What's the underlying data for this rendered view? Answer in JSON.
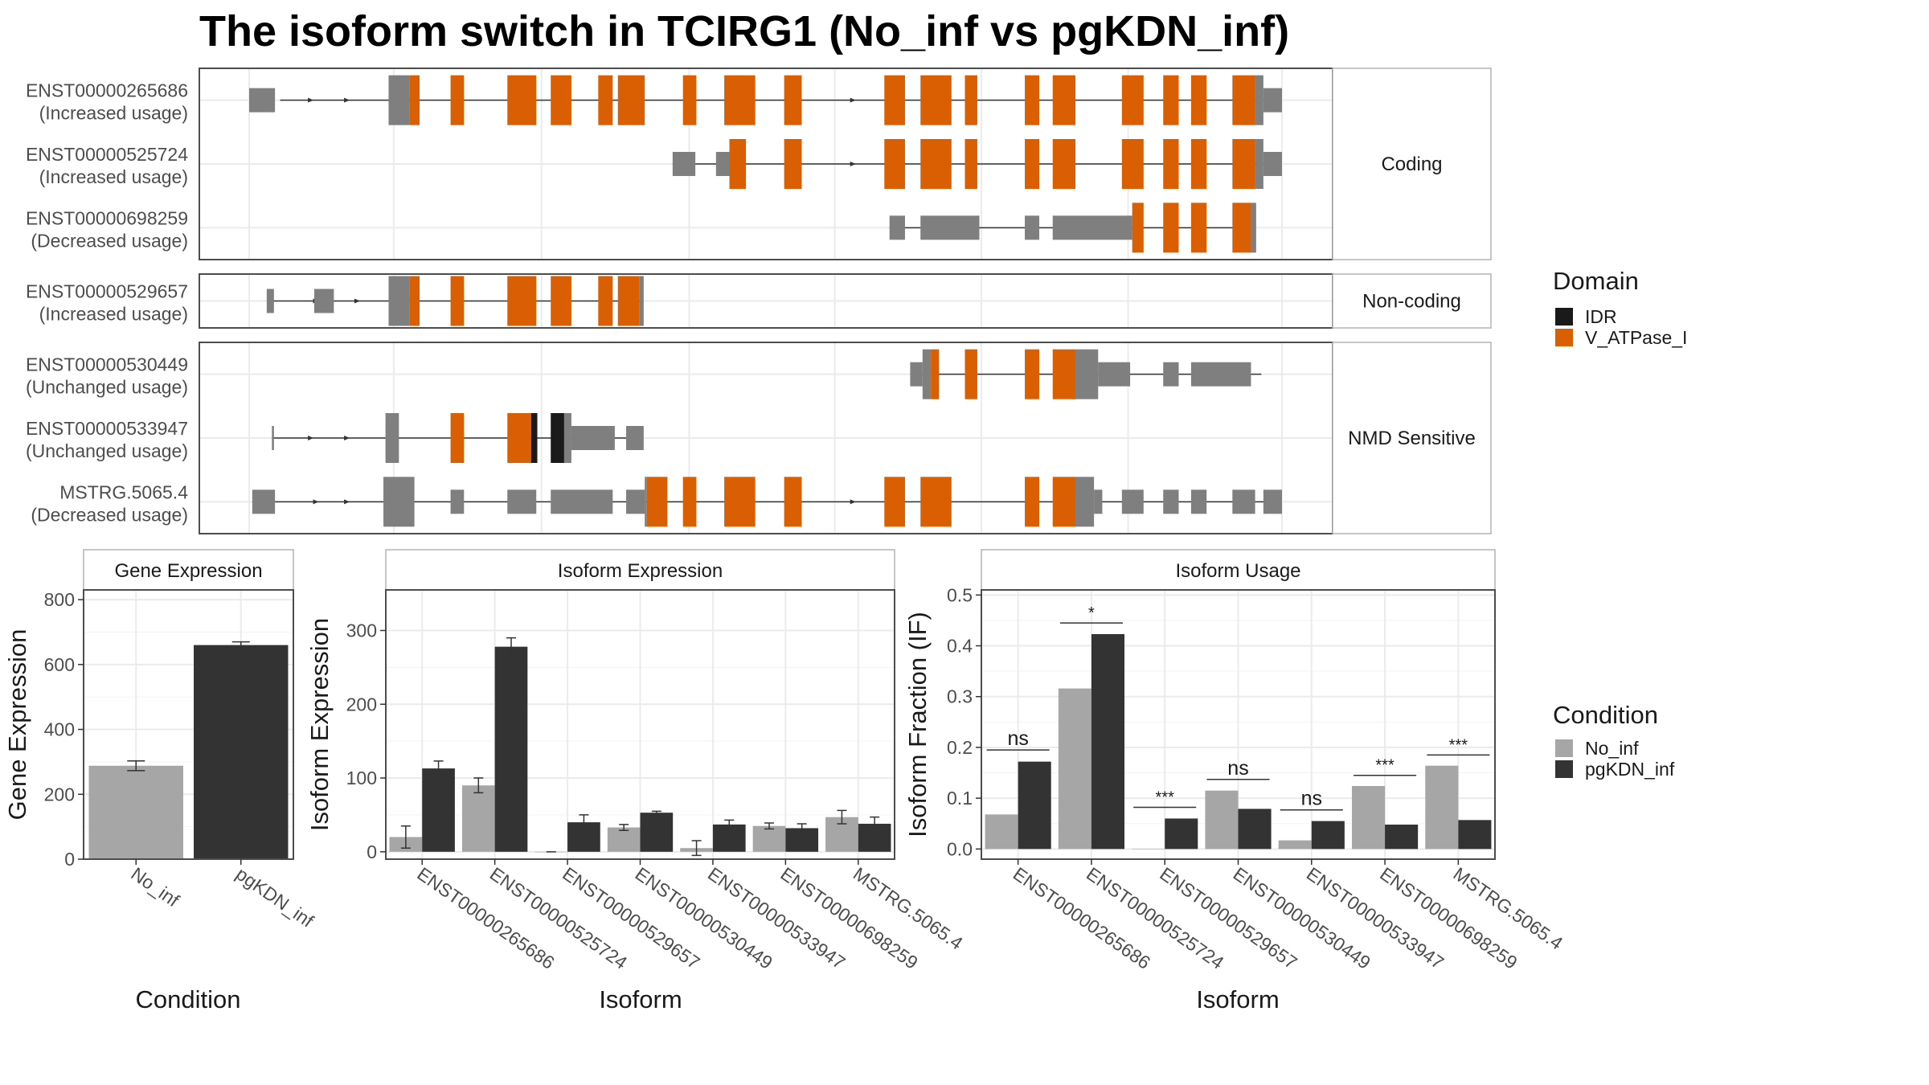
{
  "title": "The isoform switch in TCIRG1 (No_inf vs pgKDN_inf)",
  "colors": {
    "exon_gray": "#7f7f7f",
    "domain_idr": "#1a1a1a",
    "domain_vatpase": "#d95f02",
    "no_inf": "#a6a6a6",
    "pgkdn_inf": "#333333",
    "panel_border": "#4d4d4d",
    "strip_bg": "#ffffff",
    "grid": "#ebebeb"
  },
  "structure": {
    "genomic_range": [
      0,
      1000
    ],
    "panels": [
      {
        "label": "Coding",
        "transcripts": [
          {
            "id": "ENST00000265686",
            "usage": "(Increased usage)",
            "intron": [
              30,
              1000
            ],
            "arrows": [
              60,
              95,
              585
            ],
            "exons": [
              [
                0,
                25,
                "thin"
              ],
              [
                135,
                155,
                "thick"
              ],
              [
                155,
                165,
                "vatpase"
              ],
              [
                195,
                208,
                "vatpase"
              ],
              [
                250,
                278,
                "vatpase"
              ],
              [
                292,
                312,
                "vatpase"
              ],
              [
                338,
                352,
                "vatpase"
              ],
              [
                357,
                383,
                "vatpase"
              ],
              [
                420,
                433,
                "vatpase"
              ],
              [
                460,
                490,
                "vatpase"
              ],
              [
                518,
                535,
                "vatpase"
              ],
              [
                615,
                635,
                "vatpase"
              ],
              [
                650,
                680,
                "vatpase"
              ],
              [
                693,
                705,
                "vatpase"
              ],
              [
                751,
                765,
                "vatpase"
              ],
              [
                778,
                800,
                "vatpase"
              ],
              [
                845,
                866,
                "vatpase"
              ],
              [
                885,
                900,
                "vatpase"
              ],
              [
                912,
                927,
                "vatpase"
              ],
              [
                952,
                974,
                "vatpase"
              ],
              [
                974,
                982,
                "thick"
              ],
              [
                982,
                1000,
                "thin"
              ]
            ]
          },
          {
            "id": "ENST00000525724",
            "usage": "(Increased usage)",
            "intron": [
              410,
              1000
            ],
            "arrows": [
              585
            ],
            "exons": [
              [
                410,
                432,
                "thin"
              ],
              [
                452,
                465,
                "thin"
              ],
              [
                465,
                481,
                "vatpase"
              ],
              [
                518,
                535,
                "vatpase"
              ],
              [
                615,
                635,
                "vatpase"
              ],
              [
                650,
                680,
                "vatpase"
              ],
              [
                693,
                705,
                "vatpase"
              ],
              [
                751,
                765,
                "vatpase"
              ],
              [
                778,
                800,
                "vatpase"
              ],
              [
                845,
                866,
                "vatpase"
              ],
              [
                885,
                900,
                "vatpase"
              ],
              [
                912,
                927,
                "vatpase"
              ],
              [
                952,
                974,
                "vatpase"
              ],
              [
                974,
                982,
                "thick"
              ],
              [
                982,
                1000,
                "thin"
              ]
            ]
          },
          {
            "id": "ENST00000698259",
            "usage": "(Decreased usage)",
            "intron": [
              620,
              955
            ],
            "arrows": [],
            "exons": [
              [
                620,
                635,
                "thin"
              ],
              [
                650,
                707,
                "thin"
              ],
              [
                751,
                765,
                "thin"
              ],
              [
                778,
                855,
                "thin"
              ],
              [
                855,
                866,
                "vatpase"
              ],
              [
                885,
                900,
                "vatpase"
              ],
              [
                912,
                927,
                "vatpase"
              ],
              [
                952,
                970,
                "vatpase"
              ],
              [
                970,
                975,
                "thick"
              ]
            ]
          }
        ]
      },
      {
        "label": "Non-coding",
        "transcripts": [
          {
            "id": "ENST00000529657",
            "usage": "(Increased usage)",
            "intron": [
              17,
              380
            ],
            "arrows": [
              65,
              105
            ],
            "exons": [
              [
                17,
                24,
                "thin"
              ],
              [
                63,
                82,
                "thin"
              ],
              [
                135,
                155,
                "thick"
              ],
              [
                155,
                165,
                "vatpase"
              ],
              [
                195,
                208,
                "vatpase"
              ],
              [
                250,
                278,
                "vatpase"
              ],
              [
                292,
                312,
                "vatpase"
              ],
              [
                338,
                352,
                "vatpase"
              ],
              [
                357,
                378,
                "vatpase"
              ],
              [
                378,
                382,
                "thick"
              ]
            ]
          }
        ]
      },
      {
        "label": "NMD Sensitive",
        "transcripts": [
          {
            "id": "ENST00000530449",
            "usage": "(Unchanged usage)",
            "intron": [
              640,
              980
            ],
            "arrows": [],
            "exons": [
              [
                640,
                652,
                "thin"
              ],
              [
                652,
                660,
                "thick"
              ],
              [
                660,
                668,
                "vatpase"
              ],
              [
                693,
                705,
                "vatpase"
              ],
              [
                751,
                765,
                "vatpase"
              ],
              [
                778,
                800,
                "vatpase"
              ],
              [
                800,
                822,
                "thick"
              ],
              [
                822,
                853,
                "thin"
              ],
              [
                885,
                900,
                "thin"
              ],
              [
                912,
                970,
                "thin"
              ]
            ]
          },
          {
            "id": "ENST00000533947",
            "usage": "(Unchanged usage)",
            "intron": [
              22,
              380
            ],
            "arrows": [
              60,
              95
            ],
            "exons": [
              [
                22,
                24,
                "thin"
              ],
              [
                132,
                145,
                "thick"
              ],
              [
                195,
                208,
                "vatpase"
              ],
              [
                250,
                273,
                "vatpase"
              ],
              [
                273,
                279,
                "idr"
              ],
              [
                292,
                305,
                "idr"
              ],
              [
                305,
                312,
                "thick"
              ],
              [
                312,
                354,
                "thin"
              ],
              [
                365,
                382,
                "thin"
              ]
            ]
          },
          {
            "id": "MSTRG.5065.4",
            "usage": "(Decreased usage)",
            "intron": [
              3,
              1000
            ],
            "arrows": [
              65,
              95,
              585
            ],
            "exons": [
              [
                3,
                25,
                "thin"
              ],
              [
                130,
                160,
                "thick"
              ],
              [
                195,
                208,
                "thin"
              ],
              [
                250,
                278,
                "thin"
              ],
              [
                292,
                352,
                "thin"
              ],
              [
                365,
                383,
                "thin"
              ],
              [
                383,
                385,
                "thick"
              ],
              [
                385,
                405,
                "vatpase"
              ],
              [
                420,
                433,
                "vatpase"
              ],
              [
                460,
                490,
                "vatpase"
              ],
              [
                518,
                535,
                "vatpase"
              ],
              [
                615,
                635,
                "vatpase"
              ],
              [
                650,
                680,
                "vatpase"
              ],
              [
                751,
                765,
                "vatpase"
              ],
              [
                778,
                800,
                "vatpase"
              ],
              [
                800,
                818,
                "thick"
              ],
              [
                818,
                826,
                "thin"
              ],
              [
                845,
                866,
                "thin"
              ],
              [
                885,
                900,
                "thin"
              ],
              [
                912,
                927,
                "thin"
              ],
              [
                952,
                974,
                "thin"
              ],
              [
                982,
                1000,
                "thin"
              ]
            ]
          }
        ]
      }
    ]
  },
  "legends": {
    "domain": {
      "title": "Domain",
      "items": [
        {
          "label": "IDR",
          "color": "#1a1a1a"
        },
        {
          "label": "V_ATPase_I",
          "color": "#d95f02"
        }
      ]
    },
    "condition": {
      "title": "Condition",
      "items": [
        {
          "label": "No_inf",
          "color": "#a6a6a6"
        },
        {
          "label": "pgKDN_inf",
          "color": "#333333"
        }
      ]
    }
  },
  "chart_data": [
    {
      "type": "bar",
      "strip": "Gene Expression",
      "xlabel": "Condition",
      "ylabel": "Gene Expression",
      "ylim": [
        0,
        830
      ],
      "yticks": [
        0,
        200,
        400,
        600,
        800
      ],
      "categories": [
        "No_inf",
        "pgKDN_inf"
      ],
      "values": [
        288,
        660
      ],
      "errors": [
        15,
        10
      ],
      "colors": [
        "#a6a6a6",
        "#333333"
      ]
    },
    {
      "type": "bar",
      "strip": "Isoform Expression",
      "xlabel": "Isoform",
      "ylabel": "Isoform Expression",
      "ylim": [
        -10,
        355
      ],
      "yticks": [
        0,
        100,
        200,
        300
      ],
      "categories": [
        "ENST00000265686",
        "ENST00000525724",
        "ENST00000529657",
        "ENST00000530449",
        "ENST00000533947",
        "ENST00000698259",
        "MSTRG.5065.4"
      ],
      "series": [
        {
          "name": "No_inf",
          "values": [
            20,
            90,
            0,
            33,
            5,
            35,
            47
          ],
          "errors": [
            15,
            10,
            0,
            4,
            10,
            4,
            9
          ]
        },
        {
          "name": "pgKDN_inf",
          "values": [
            113,
            278,
            40,
            53,
            37,
            32,
            38
          ],
          "errors": [
            10,
            12,
            10,
            2,
            6,
            6,
            9
          ]
        }
      ]
    },
    {
      "type": "bar",
      "strip": "Isoform Usage",
      "xlabel": "Isoform",
      "ylabel": "Isoform Fraction (IF)",
      "ylim": [
        -0.02,
        0.51
      ],
      "yticks": [
        0.0,
        0.1,
        0.2,
        0.3,
        0.4,
        0.5
      ],
      "categories": [
        "ENST00000265686",
        "ENST00000525724",
        "ENST00000529657",
        "ENST00000530449",
        "ENST00000533947",
        "ENST00000698259",
        "MSTRG.5065.4"
      ],
      "series": [
        {
          "name": "No_inf",
          "values": [
            0.068,
            0.316,
            0.0,
            0.115,
            0.017,
            0.124,
            0.164
          ]
        },
        {
          "name": "pgKDN_inf",
          "values": [
            0.172,
            0.423,
            0.06,
            0.079,
            0.055,
            0.048,
            0.057
          ]
        }
      ],
      "annotations": [
        "ns",
        "*",
        "***",
        "ns",
        "ns",
        "***",
        "***"
      ],
      "annotation_y": [
        0.195,
        0.445,
        0.082,
        0.137,
        0.077,
        0.145,
        0.185
      ]
    }
  ]
}
